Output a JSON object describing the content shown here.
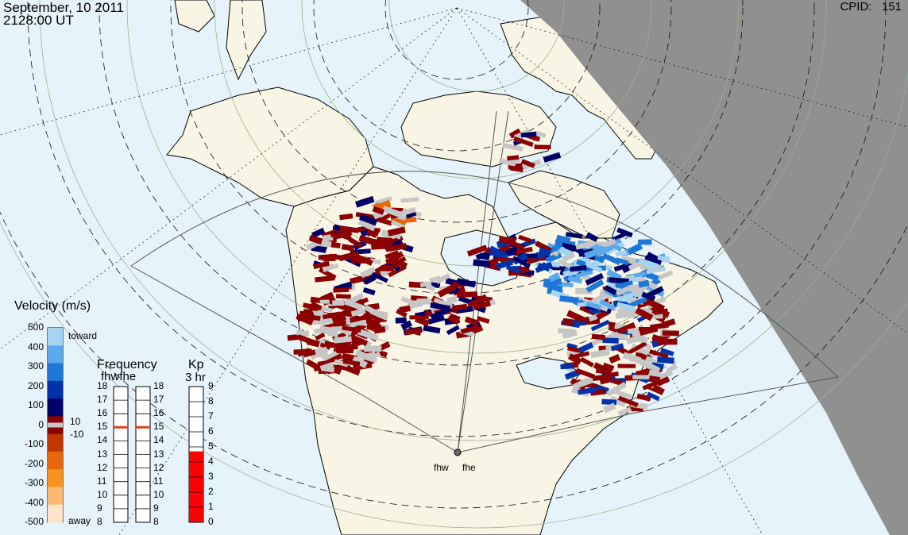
{
  "header": {
    "date": "September, 10 2011",
    "time": "2128:00 UT",
    "cpid_label": "CPID:",
    "cpid_value": "151"
  },
  "velocity_scale": {
    "title": "Velocity (m/s)",
    "ticks": [
      "500",
      "400",
      "300",
      "200",
      "100",
      "0",
      "-100",
      "-200",
      "-300",
      "-400",
      "-500"
    ],
    "toward_label": "toward",
    "away_label": "away",
    "gs_upper": "10",
    "gs_lower": "-10",
    "colors": [
      "#fde3c8",
      "#fbb873",
      "#f7911f",
      "#e8670b",
      "#c03700",
      "#8b0000",
      "#000066",
      "#0033aa",
      "#1e77d6",
      "#5aa9ea",
      "#a6d4f5"
    ]
  },
  "frequency_panel": {
    "title": "Frequency",
    "radars_label": "fhwfhe",
    "ticks": [
      "18",
      "17",
      "16",
      "15",
      "14",
      "13",
      "12",
      "11",
      "10",
      "9",
      "8"
    ],
    "fhw_frequency": 15,
    "fhe_frequency": 15
  },
  "kp_panel": {
    "title": "Kp",
    "subtitle": "3 hr",
    "ticks": [
      "9",
      "8",
      "7",
      "6",
      "5",
      "4",
      "3",
      "2",
      "1",
      "0"
    ],
    "value": 4.7
  },
  "radars": {
    "west": "fhw",
    "east": "fhe"
  },
  "colors": {
    "ocean": "#e7f3fb",
    "land": "#f8f5e4",
    "night": "#909090",
    "coast": "#000000",
    "grid": "#8aa38a",
    "fov": "#555555",
    "ground_scatter": "#c6c6c6"
  }
}
